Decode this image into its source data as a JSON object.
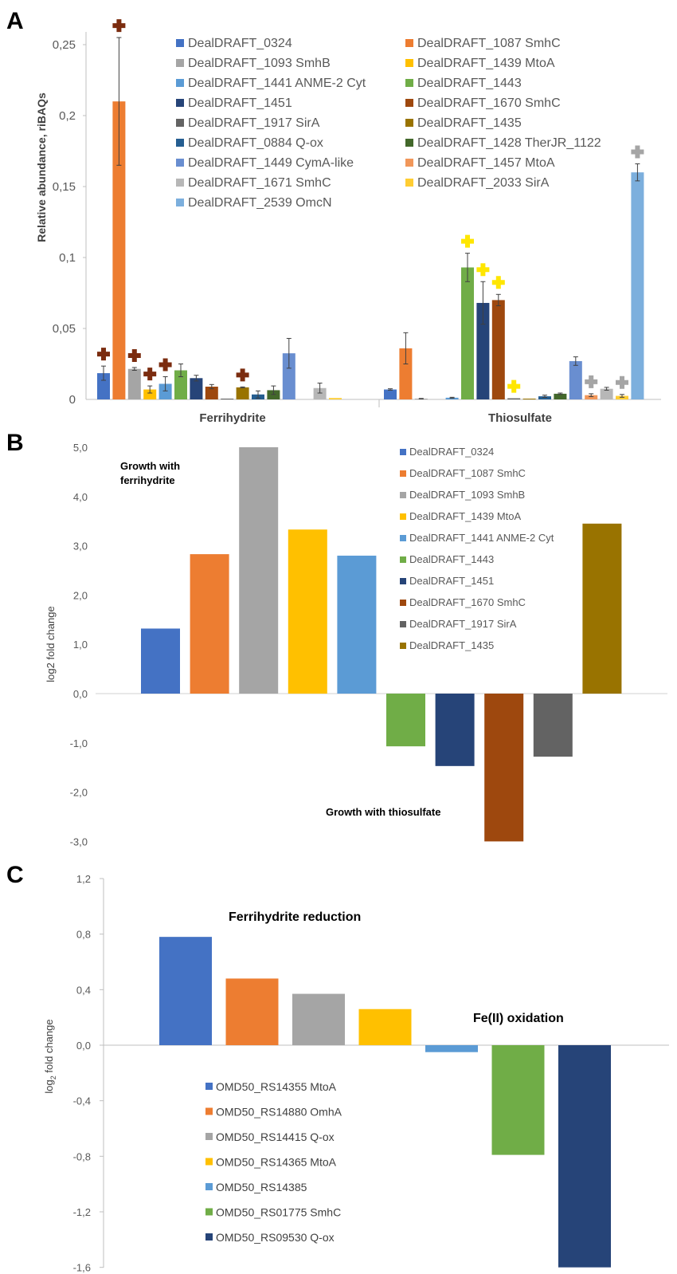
{
  "chart_data": [
    {
      "panel": "A",
      "type": "bar",
      "ylabel": "Relative abundance, riBAQs",
      "ylim": [
        0,
        0.26
      ],
      "yticks": [
        0,
        0.05,
        0.1,
        0.15,
        0.2,
        0.25
      ],
      "ytick_labels": [
        "0",
        "0,05",
        "0,1",
        "0,15",
        "0,2",
        "0,25"
      ],
      "groups": [
        "Ferrihydrite",
        "Thiosulfate"
      ],
      "series": [
        {
          "name": "DealDRAFT_0324",
          "color": "#4472C4",
          "values": [
            0.0185,
            0.007
          ],
          "errors": [
            0.005,
            0.0005
          ]
        },
        {
          "name": "DealDRAFT_1087 SmhC",
          "color": "#ED7D31",
          "values": [
            0.21,
            0.036
          ],
          "errors": [
            0.045,
            0.011
          ]
        },
        {
          "name": "DealDRAFT_1093 SmhB",
          "color": "#A5A5A5",
          "values": [
            0.0215,
            0.0005
          ],
          "errors": [
            0.001,
            0.0002
          ]
        },
        {
          "name": "DealDRAFT_1439 MtoA",
          "color": "#FFC000",
          "values": [
            0.007,
            0.0
          ],
          "errors": [
            0.0025,
            0.0
          ]
        },
        {
          "name": "DealDRAFT_1441 ANME-2 Cyt",
          "color": "#5B9BD5",
          "values": [
            0.011,
            0.0012
          ],
          "errors": [
            0.005,
            0.0003
          ]
        },
        {
          "name": "DealDRAFT_1443",
          "color": "#70AD47",
          "values": [
            0.0205,
            0.093
          ],
          "errors": [
            0.0045,
            0.01
          ]
        },
        {
          "name": "DealDRAFT_1451",
          "color": "#264478",
          "values": [
            0.015,
            0.068
          ],
          "errors": [
            0.002,
            0.015
          ]
        },
        {
          "name": "DealDRAFT_1670 SmhC",
          "color": "#9E480E",
          "values": [
            0.009,
            0.07
          ],
          "errors": [
            0.0015,
            0.004
          ]
        },
        {
          "name": "DealDRAFT_1917 SirA",
          "color": "#636363",
          "values": [
            0.0005,
            0.0008
          ],
          "errors": [
            0.0,
            0.0
          ]
        },
        {
          "name": "DealDRAFT_1435",
          "color": "#997300",
          "values": [
            0.0085,
            0.0004
          ],
          "errors": [
            0.0003,
            0.0
          ]
        },
        {
          "name": "DealDRAFT_0884 Q-ox",
          "color": "#255E91",
          "values": [
            0.0035,
            0.0022
          ],
          "errors": [
            0.0025,
            0.0008
          ]
        },
        {
          "name": "DealDRAFT_1428 TherJR_1122",
          "color": "#43682B",
          "values": [
            0.0065,
            0.004
          ],
          "errors": [
            0.003,
            0.0005
          ]
        },
        {
          "name": "DealDRAFT_1449 CymA-like",
          "color": "#698ED0",
          "values": [
            0.0325,
            0.027
          ],
          "errors": [
            0.0105,
            0.003
          ]
        },
        {
          "name": "DealDRAFT_1457 MtoA",
          "color": "#F1975A",
          "values": [
            0.0,
            0.003
          ],
          "errors": [
            0.0,
            0.001
          ]
        },
        {
          "name": "DealDRAFT_1671 SmhC",
          "color": "#B7B7B7",
          "values": [
            0.008,
            0.0075
          ],
          "errors": [
            0.0035,
            0.001
          ]
        },
        {
          "name": "DealDRAFT_2033 SirA",
          "color": "#FFCD33",
          "values": [
            0.001,
            0.0025
          ],
          "errors": [
            0.0,
            0.001
          ]
        },
        {
          "name": "DealDRAFT_2539 OmcN",
          "color": "#7CAFDD",
          "values": [
            0.0,
            0.16
          ],
          "errors": [
            0.0,
            0.006
          ]
        }
      ],
      "plus_markers": [
        {
          "group": "Ferrihydrite",
          "series": "DealDRAFT_0324",
          "color": "#7B2C0F"
        },
        {
          "group": "Ferrihydrite",
          "series": "DealDRAFT_1087 SmhC",
          "color": "#7B2C0F"
        },
        {
          "group": "Ferrihydrite",
          "series": "DealDRAFT_1093 SmhB",
          "color": "#7B2C0F"
        },
        {
          "group": "Ferrihydrite",
          "series": "DealDRAFT_1439 MtoA",
          "color": "#7B2C0F"
        },
        {
          "group": "Ferrihydrite",
          "series": "DealDRAFT_1441 ANME-2 Cyt",
          "color": "#7B2C0F"
        },
        {
          "group": "Ferrihydrite",
          "series": "DealDRAFT_1435",
          "color": "#7B2C0F"
        },
        {
          "group": "Thiosulfate",
          "series": "DealDRAFT_1443",
          "color": "#FFE600"
        },
        {
          "group": "Thiosulfate",
          "series": "DealDRAFT_1451",
          "color": "#FFE600"
        },
        {
          "group": "Thiosulfate",
          "series": "DealDRAFT_1670 SmhC",
          "color": "#FFE600"
        },
        {
          "group": "Thiosulfate",
          "series": "DealDRAFT_1917 SirA",
          "color": "#FFE600"
        },
        {
          "group": "Thiosulfate",
          "series": "DealDRAFT_1457 MtoA",
          "color": "#A5A5A5"
        },
        {
          "group": "Thiosulfate",
          "series": "DealDRAFT_2033 SirA",
          "color": "#A5A5A5"
        },
        {
          "group": "Thiosulfate",
          "series": "DealDRAFT_2539 OmcN",
          "color": "#A5A5A5"
        }
      ]
    },
    {
      "panel": "B",
      "type": "bar",
      "ylabel": "log2 fold change",
      "ylim": [
        -3,
        5
      ],
      "yticks": [
        -3,
        -2,
        -1,
        0,
        1,
        2,
        3,
        4,
        5
      ],
      "ytick_labels": [
        "-3,0",
        "-2,0",
        "-1,0",
        "0,0",
        "1,0",
        "2,0",
        "3,0",
        "4,0",
        "5,0"
      ],
      "annotations": [
        "Growth  with\nferrihydrite",
        "Growth  with thiosulfate"
      ],
      "bars": [
        {
          "name": "DealDRAFT_0324",
          "value": 1.32,
          "color": "#4472C4"
        },
        {
          "name": "DealDRAFT_1087 SmhC",
          "value": 2.83,
          "color": "#ED7D31"
        },
        {
          "name": "DealDRAFT_1093 SmhB",
          "value": 5.0,
          "color": "#A5A5A5"
        },
        {
          "name": "DealDRAFT_1439 MtoA",
          "value": 3.33,
          "color": "#FFC000"
        },
        {
          "name": "DealDRAFT_1441 ANME-2 Cyt",
          "value": 2.8,
          "color": "#5B9BD5"
        },
        {
          "name": "DealDRAFT_1443",
          "value": -1.07,
          "color": "#70AD47"
        },
        {
          "name": "DealDRAFT_1451",
          "value": -1.47,
          "color": "#264478"
        },
        {
          "name": "DealDRAFT_1670 SmhC",
          "value": -3.0,
          "color": "#9E480E"
        },
        {
          "name": "DealDRAFT_1917 SirA",
          "value": -1.28,
          "color": "#636363"
        },
        {
          "name": "DealDRAFT_1435",
          "value": 3.45,
          "color": "#997300"
        }
      ]
    },
    {
      "panel": "C",
      "type": "bar",
      "ylabel": "log2 fold change",
      "ylim": [
        -1.6,
        1.2
      ],
      "yticks": [
        -1.6,
        -1.2,
        -0.8,
        -0.4,
        0,
        0.4,
        0.8,
        1.2
      ],
      "ytick_labels": [
        "-1,6",
        "-1,2",
        "-0,8",
        "-0,4",
        "0,0",
        "0,4",
        "0,8",
        "1,2"
      ],
      "annotations": [
        "Ferrihydrite reduction",
        "Fe(II) oxidation"
      ],
      "bars": [
        {
          "name": "OMD50_RS14355 MtoA",
          "value": 0.78,
          "color": "#4472C4"
        },
        {
          "name": "OMD50_RS14880 OmhA",
          "value": 0.48,
          "color": "#ED7D31"
        },
        {
          "name": "OMD50_RS14415 Q-ox",
          "value": 0.37,
          "color": "#A5A5A5"
        },
        {
          "name": "OMD50_RS14365 MtoA",
          "value": 0.26,
          "color": "#FFC000"
        },
        {
          "name": "OMD50_RS14385",
          "value": -0.05,
          "color": "#5B9BD5"
        },
        {
          "name": "OMD50_RS01775 SmhC",
          "value": -0.79,
          "color": "#70AD47"
        },
        {
          "name": "OMD50_RS09530 Q-ox",
          "value": -1.6,
          "color": "#264478"
        }
      ]
    }
  ],
  "panel_labels": [
    "A",
    "B",
    "C"
  ]
}
